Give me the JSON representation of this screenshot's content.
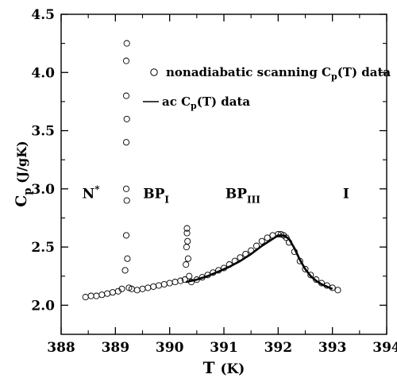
{
  "chart_data": {
    "type": "scatter",
    "xlabel": "T (K)",
    "ylabel": "C_p (J/gK)",
    "xlim": [
      388,
      394
    ],
    "ylim": [
      1.75,
      4.5
    ],
    "x_ticks": [
      "388",
      "389",
      "390",
      "391",
      "392",
      "393",
      "394"
    ],
    "y_ticks": [
      "2.0",
      "2.5",
      "3.0",
      "3.5",
      "4.0",
      "4.5"
    ],
    "grid": false,
    "legend_placement": "top-right",
    "legend": [
      {
        "marker": "open-circle",
        "text": "nonadiabatic scanning C_p(T) data"
      },
      {
        "marker": "line",
        "text": "ac C_p(T) data"
      }
    ],
    "annotations": [
      {
        "label": "N*",
        "x": 388.55,
        "y": 2.92
      },
      {
        "label": "BP_I",
        "x": 389.75,
        "y": 2.92
      },
      {
        "label": "BP_III",
        "x": 391.35,
        "y": 2.92
      },
      {
        "label": "I",
        "x": 393.25,
        "y": 2.92
      }
    ],
    "series": [
      {
        "name": "nonadiabatic scanning C_p(T) data",
        "style": "open-circle",
        "x": [
          388.45,
          388.55,
          388.65,
          388.75,
          388.85,
          388.95,
          389.05,
          389.12,
          389.18,
          389.2,
          389.2,
          389.2,
          389.2,
          389.2,
          389.21,
          389.21,
          389.21,
          389.22,
          389.25,
          389.3,
          389.4,
          389.5,
          389.6,
          389.7,
          389.8,
          389.9,
          390.0,
          390.1,
          390.2,
          390.28,
          390.3,
          390.31,
          390.32,
          390.32,
          390.33,
          390.34,
          390.36,
          390.4,
          390.5,
          390.6,
          390.7,
          390.8,
          390.9,
          391.0,
          391.1,
          391.2,
          391.3,
          391.4,
          391.5,
          391.6,
          391.7,
          391.8,
          391.9,
          392.0,
          392.05,
          392.1,
          392.15,
          392.2,
          392.3,
          392.4,
          392.5,
          392.6,
          392.7,
          392.8,
          392.9,
          393.0,
          393.1
        ],
        "y": [
          2.07,
          2.08,
          2.08,
          2.09,
          2.1,
          2.11,
          2.12,
          2.14,
          2.3,
          2.6,
          3.0,
          3.4,
          3.8,
          4.1,
          4.25,
          3.6,
          2.9,
          2.4,
          2.15,
          2.14,
          2.13,
          2.14,
          2.15,
          2.16,
          2.17,
          2.18,
          2.19,
          2.2,
          2.21,
          2.22,
          2.35,
          2.5,
          2.62,
          2.66,
          2.55,
          2.4,
          2.25,
          2.2,
          2.22,
          2.24,
          2.26,
          2.28,
          2.3,
          2.32,
          2.35,
          2.38,
          2.41,
          2.44,
          2.47,
          2.51,
          2.55,
          2.58,
          2.6,
          2.61,
          2.61,
          2.6,
          2.58,
          2.54,
          2.46,
          2.38,
          2.31,
          2.26,
          2.22,
          2.19,
          2.17,
          2.15,
          2.13
        ]
      },
      {
        "name": "ac C_p(T) data",
        "style": "line",
        "x": [
          390.3,
          390.5,
          390.7,
          390.9,
          391.1,
          391.3,
          391.5,
          391.7,
          391.9,
          392.0,
          392.1,
          392.2,
          392.3,
          392.4,
          392.5,
          392.6,
          392.7,
          392.8,
          392.9,
          393.0
        ],
        "y": [
          2.2,
          2.22,
          2.25,
          2.29,
          2.33,
          2.38,
          2.44,
          2.51,
          2.57,
          2.6,
          2.6,
          2.57,
          2.49,
          2.39,
          2.31,
          2.25,
          2.21,
          2.18,
          2.16,
          2.14
        ]
      }
    ]
  }
}
